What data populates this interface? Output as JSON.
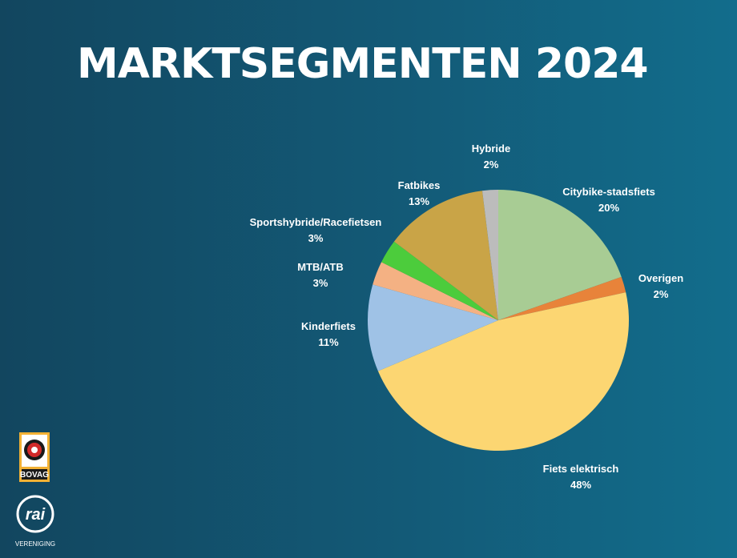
{
  "chart_data": {
    "type": "pie",
    "title": "MARKTSEGMENTEN 2024",
    "slices": [
      {
        "label": "Citybike-stadsfiets",
        "value": 20,
        "value_label": "20%",
        "color": "#a8cc94"
      },
      {
        "label": "Overigen",
        "value": 2,
        "value_label": "2%",
        "color": "#e8833a"
      },
      {
        "label": "Fiets elektrisch",
        "value": 48,
        "value_label": "48%",
        "color": "#fcd672"
      },
      {
        "label": "Kinderfiets",
        "value": 11,
        "value_label": "11%",
        "color": "#9fc2e6"
      },
      {
        "label": "MTB/ATB",
        "value": 3,
        "value_label": "3%",
        "color": "#f4b183"
      },
      {
        "label": "Sportshybride/Racefietsen",
        "value": 3,
        "value_label": "3%",
        "color": "#4ccc3c"
      },
      {
        "label": "Fatbikes",
        "value": 13,
        "value_label": "13%",
        "color": "#c9a447"
      },
      {
        "label": "Hybride",
        "value": 2,
        "value_label": "2%",
        "color": "#bcbcbc"
      }
    ]
  },
  "logos": {
    "bovag": "BOVAG",
    "rai": "rai",
    "vereniging": "VERENIGING"
  }
}
